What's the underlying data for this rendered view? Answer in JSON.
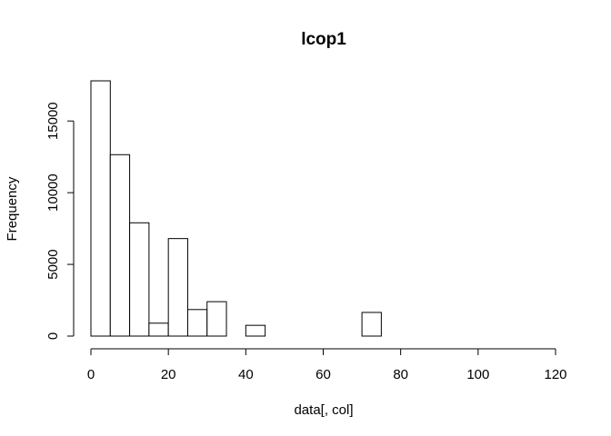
{
  "chart_data": {
    "type": "bar",
    "title": "lcop1",
    "xlabel": "data[, col]",
    "ylabel": "Frequency",
    "bins": [
      {
        "from": 0,
        "to": 5,
        "count": 17800
      },
      {
        "from": 5,
        "to": 10,
        "count": 12650
      },
      {
        "from": 10,
        "to": 15,
        "count": 7900
      },
      {
        "from": 15,
        "to": 20,
        "count": 900
      },
      {
        "from": 20,
        "to": 25,
        "count": 6800
      },
      {
        "from": 25,
        "to": 30,
        "count": 1850
      },
      {
        "from": 30,
        "to": 35,
        "count": 2400
      },
      {
        "from": 35,
        "to": 40,
        "count": 0
      },
      {
        "from": 40,
        "to": 45,
        "count": 750
      },
      {
        "from": 45,
        "to": 50,
        "count": 0
      },
      {
        "from": 50,
        "to": 55,
        "count": 0
      },
      {
        "from": 55,
        "to": 60,
        "count": 0
      },
      {
        "from": 60,
        "to": 65,
        "count": 0
      },
      {
        "from": 65,
        "to": 70,
        "count": 0
      },
      {
        "from": 70,
        "to": 75,
        "count": 1650
      },
      {
        "from": 75,
        "to": 80,
        "count": 0
      },
      {
        "from": 80,
        "to": 85,
        "count": 0
      },
      {
        "from": 85,
        "to": 90,
        "count": 0
      },
      {
        "from": 90,
        "to": 95,
        "count": 0
      },
      {
        "from": 95,
        "to": 100,
        "count": 0
      },
      {
        "from": 100,
        "to": 105,
        "count": 0
      },
      {
        "from": 105,
        "to": 110,
        "count": 0
      },
      {
        "from": 110,
        "to": 115,
        "count": 0
      },
      {
        "from": 115,
        "to": 120,
        "count": 0
      }
    ],
    "xlim": [
      0,
      120
    ],
    "ylim": [
      0,
      17800
    ],
    "x_ticks": [
      "0",
      "20",
      "40",
      "60",
      "80",
      "100",
      "120"
    ],
    "y_ticks": [
      "0",
      "5000",
      "10000",
      "15000"
    ],
    "grid": false,
    "colors": {
      "bar_fill": "#ffffff",
      "bar_stroke": "#000000"
    }
  }
}
